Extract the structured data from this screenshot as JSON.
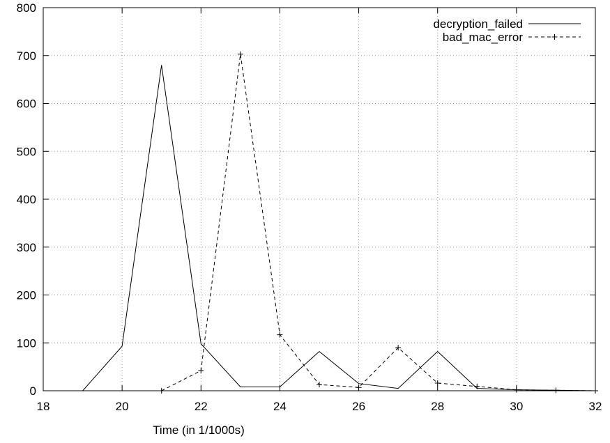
{
  "chart_data": {
    "type": "line",
    "xlabel": "Time (in 1/1000s)",
    "ylabel": "",
    "xlim": [
      18,
      32
    ],
    "ylim": [
      0,
      800
    ],
    "x_ticks": [
      18,
      20,
      22,
      24,
      26,
      28,
      30,
      32
    ],
    "y_ticks": [
      0,
      100,
      200,
      300,
      400,
      500,
      600,
      700,
      800
    ],
    "grid": true,
    "legend_position": "top-right",
    "series": [
      {
        "name": "decryption_failed",
        "style": "solid",
        "marker": "none",
        "color": "#000000",
        "points": [
          [
            19,
            0
          ],
          [
            20,
            93
          ],
          [
            21,
            680
          ],
          [
            22,
            98
          ],
          [
            23,
            8
          ],
          [
            24,
            8
          ],
          [
            25,
            82
          ],
          [
            26,
            15
          ],
          [
            27,
            5
          ],
          [
            28,
            82
          ],
          [
            29,
            5
          ],
          [
            30,
            2
          ],
          [
            31,
            1
          ],
          [
            32,
            0
          ]
        ]
      },
      {
        "name": "bad_mac_error",
        "style": "dashed",
        "marker": "plus",
        "color": "#000000",
        "points": [
          [
            21,
            0
          ],
          [
            22,
            42
          ],
          [
            23,
            703
          ],
          [
            24,
            117
          ],
          [
            25,
            13
          ],
          [
            26,
            7
          ],
          [
            27,
            90
          ],
          [
            28,
            16
          ],
          [
            29,
            9
          ],
          [
            30,
            2
          ],
          [
            31,
            1
          ],
          [
            32,
            0
          ]
        ]
      }
    ]
  }
}
